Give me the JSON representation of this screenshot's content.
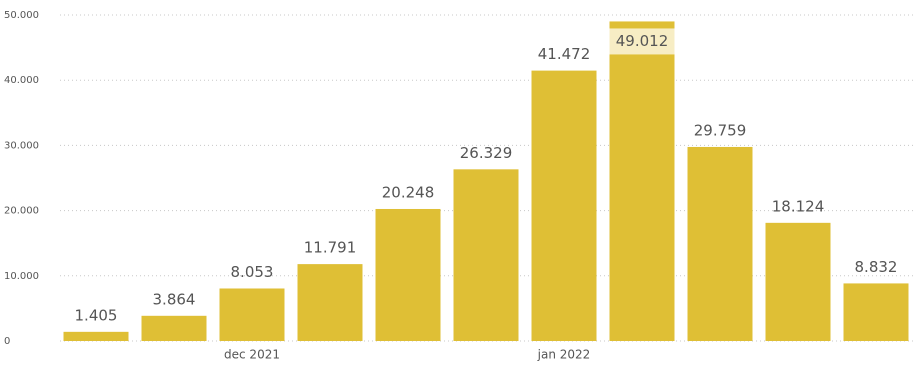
{
  "chart_data": {
    "type": "bar",
    "categories": [
      null,
      null,
      "dec 2021",
      null,
      null,
      null,
      "jan 2022",
      null,
      null,
      null,
      null
    ],
    "values": [
      1405,
      3864,
      8053,
      11791,
      20248,
      26329,
      41472,
      49012,
      29759,
      18124,
      8832
    ],
    "value_labels": [
      "1.405",
      "3.864",
      "8.053",
      "11.791",
      "20.248",
      "26.329",
      "41.472",
      "49.012",
      "29.759",
      "18.124",
      "8.832"
    ],
    "color": "#dfbf35",
    "ylim": [
      0,
      50000
    ],
    "yticks": [
      0,
      {
        "value": 10000,
        "label": "10.000"
      },
      {
        "value": 20000,
        "label": "20.000"
      },
      {
        "value": 30000,
        "label": "30.000"
      },
      {
        "value": 40000,
        "label": "40.000"
      },
      {
        "value": 50000,
        "label": "50.000"
      }
    ],
    "grid": true
  }
}
